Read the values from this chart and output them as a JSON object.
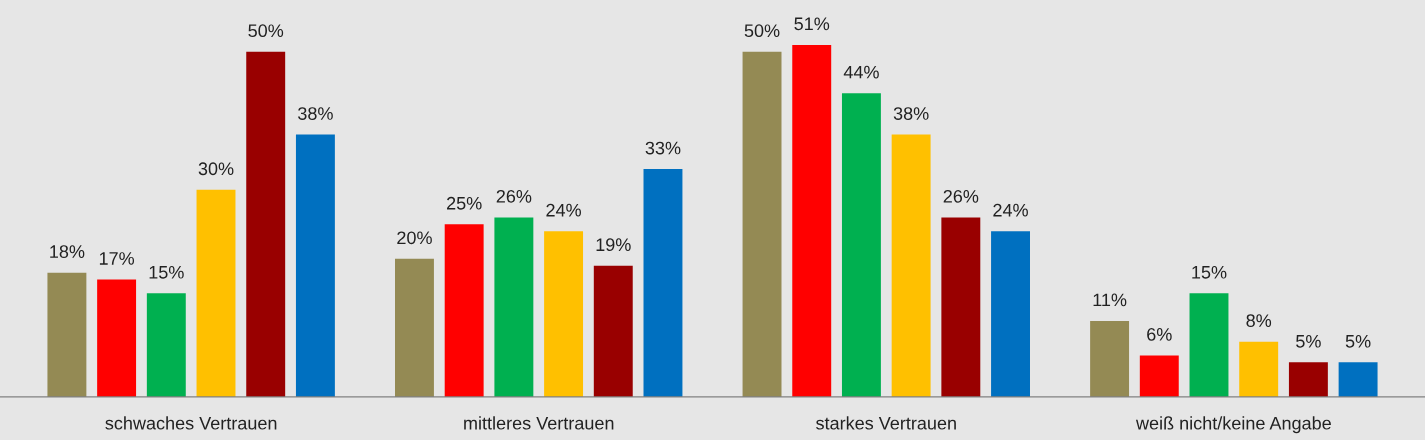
{
  "chart_data": {
    "type": "bar",
    "categories": [
      "schwaches Vertrauen",
      "mittleres Vertrauen",
      "starkes Vertrauen",
      "weiß nicht/keine Angabe"
    ],
    "series": [
      {
        "color": "#948a54",
        "values": [
          18,
          20,
          50,
          11
        ],
        "value_labels": [
          "18%",
          "20%",
          "50%",
          "11%"
        ]
      },
      {
        "color": "#ff0000",
        "values": [
          17,
          25,
          51,
          6
        ],
        "value_labels": [
          "17%",
          "25%",
          "51%",
          "6%"
        ]
      },
      {
        "color": "#00b050",
        "values": [
          15,
          26,
          44,
          15
        ],
        "value_labels": [
          "15%",
          "26%",
          "44%",
          "15%"
        ]
      },
      {
        "color": "#ffc000",
        "values": [
          30,
          24,
          38,
          8
        ],
        "value_labels": [
          "30%",
          "24%",
          "38%",
          "8%"
        ]
      },
      {
        "color": "#990000",
        "values": [
          50,
          19,
          26,
          5
        ],
        "value_labels": [
          "50%",
          "19%",
          "26%",
          "5%"
        ]
      },
      {
        "color": "#0070c0",
        "values": [
          38,
          33,
          24,
          5
        ],
        "value_labels": [
          "38%",
          "33%",
          "24%",
          "5%"
        ]
      }
    ],
    "grid": false,
    "legend": false
  }
}
